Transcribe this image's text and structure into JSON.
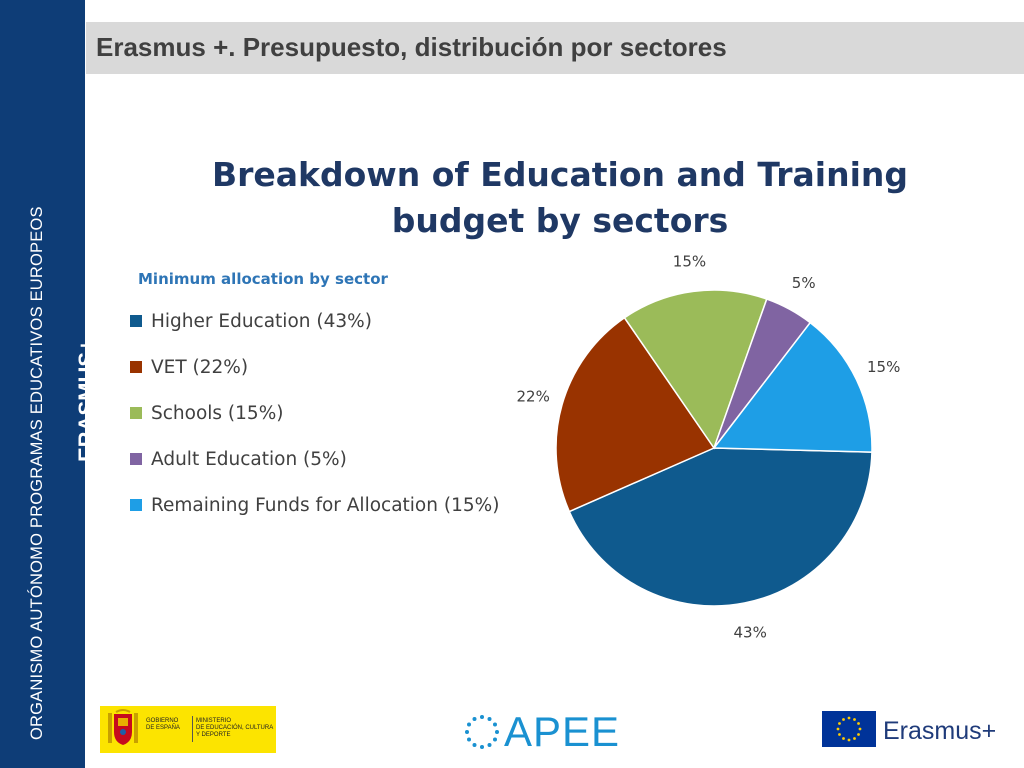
{
  "sidebar": {
    "org_name": "ORGANISMO AUTÓNOMO PROGRAMAS EDUCATIVOS EUROPEOS",
    "brand": "ERASMUS+"
  },
  "header": {
    "title": "Erasmus +. Presupuesto, distribución por sectores"
  },
  "chart_data": {
    "type": "pie",
    "title_lines": [
      "Breakdown of Education and Training",
      "budget by sectors"
    ],
    "legend_title": "Minimum allocation by sector",
    "legend_placement": "left",
    "slices": [
      {
        "label": "Higher Education (43%)",
        "value": 43,
        "pct_label": "43%",
        "color": "#0f5a8e"
      },
      {
        "label": "VET (22%)",
        "value": 22,
        "pct_label": "22%",
        "color": "#993300"
      },
      {
        "label": "Schools (15%)",
        "value": 15,
        "pct_label": "15%",
        "color": "#9bbb59"
      },
      {
        "label": "Adult Education (5%)",
        "value": 5,
        "pct_label": "5%",
        "color": "#8064a2"
      },
      {
        "label": "Remaining Funds for Allocation (15%)",
        "value": 15,
        "pct_label": "15%",
        "color": "#1e9ee6"
      }
    ]
  },
  "footer": {
    "gov_line1": "GOBIERNO",
    "gov_line2": "DE ESPAÑA",
    "ministry_line1": "MINISTERIO",
    "ministry_line2": "DE EDUCACIÓN, CULTURA",
    "ministry_line3": "Y DEPORTE",
    "apee": "APEE",
    "erasmus": "Erasmus+",
    "colors": {
      "sidebar": "#0e3d77",
      "apee": "#1a91d1",
      "eu_flag": "#003399",
      "gov_band": "#fce400"
    }
  }
}
